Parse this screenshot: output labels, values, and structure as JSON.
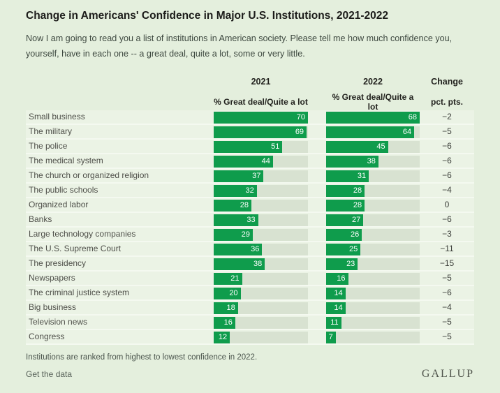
{
  "page": {
    "title": "Change in Americans' Confidence in Major U.S. Institutions, 2021-2022",
    "subtitle": "Now I am going to read you a list of institutions in American society. Please tell me how much confidence you, yourself, have in each one -- a great deal, quite a lot, some or very little."
  },
  "table_header": {
    "col_2021": {
      "year": "2021",
      "measure": "% Great deal/Quite a lot"
    },
    "col_2022": {
      "year": "2022",
      "measure": "% Great deal/Quite a lot"
    },
    "col_change": {
      "label": "Change",
      "unit": "pct. pts."
    }
  },
  "chart_data": {
    "type": "bar",
    "orientation": "horizontal",
    "categories": [
      "Small business",
      "The military",
      "The police",
      "The medical system",
      "The church or organized religion",
      "The public schools",
      "Organized labor",
      "Banks",
      "Large technology companies",
      "The U.S. Supreme Court",
      "The presidency",
      "Newspapers",
      "The criminal justice system",
      "Big business",
      "Television news",
      "Congress"
    ],
    "series": [
      {
        "name": "2021",
        "values": [
          70,
          69,
          51,
          44,
          37,
          32,
          28,
          33,
          29,
          36,
          38,
          21,
          20,
          18,
          16,
          12
        ]
      },
      {
        "name": "2022",
        "values": [
          68,
          64,
          45,
          38,
          31,
          28,
          28,
          27,
          26,
          25,
          23,
          16,
          14,
          14,
          11,
          7
        ]
      }
    ],
    "change_pct_pts": [
      -2,
      -5,
      -6,
      -6,
      -6,
      -4,
      0,
      -6,
      -3,
      -11,
      -15,
      -5,
      -6,
      -4,
      -5,
      -5
    ],
    "ylabel": "% Great deal/Quite a lot",
    "scale_max": [
      70,
      68
    ],
    "grid": false,
    "legend_position": "column-headers"
  },
  "footer": {
    "note": "Institutions are ranked from highest to lowest confidence in 2022.",
    "link": "Get the data",
    "logo": "GALLUP"
  },
  "colors": {
    "bar_green": "#0f9c4c",
    "bar_track": "#d8e2d1",
    "row_band": "#ebf3e5",
    "page_bg": "#e4efdd"
  }
}
